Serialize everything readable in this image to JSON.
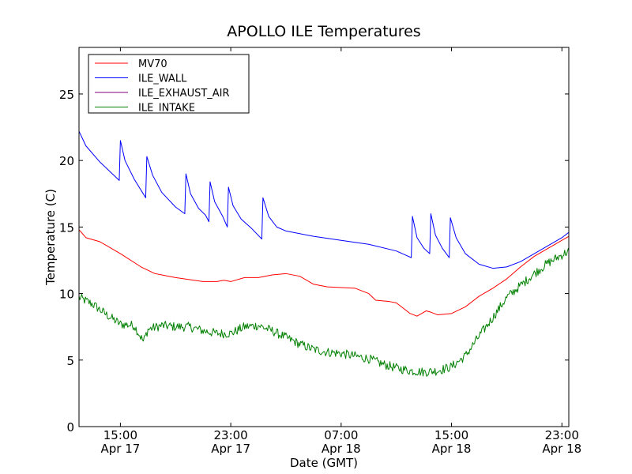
{
  "chart_data": {
    "type": "line",
    "title": "APOLLO ILE Temperatures",
    "xlabel": "Date (GMT)",
    "ylabel": "Temperature (C)",
    "xlim": [
      "2012-04-17 12:00",
      "2012-04-18 23:30"
    ],
    "ylim": [
      0,
      28.5
    ],
    "grid": false,
    "legend_location": "upper-left",
    "x_ticks": [
      {
        "x": "2012-04-17 15:00",
        "line1": "15:00",
        "line2": "Apr 17"
      },
      {
        "x": "2012-04-17 23:00",
        "line1": "23:00",
        "line2": "Apr 17"
      },
      {
        "x": "2012-04-18 07:00",
        "line1": "07:00",
        "line2": "Apr 18"
      },
      {
        "x": "2012-04-18 15:00",
        "line1": "15:00",
        "line2": "Apr 18"
      },
      {
        "x": "2012-04-18 23:00",
        "line1": "23:00",
        "line2": "Apr 18"
      }
    ],
    "y_ticks": [
      0,
      5,
      10,
      15,
      20,
      25
    ],
    "series": [
      {
        "name": "MV70",
        "color": "#ff0000",
        "points": [
          [
            "2012-04-17 12:00",
            14.8
          ],
          [
            "2012-04-17 12:30",
            14.2
          ],
          [
            "2012-04-17 13:30",
            13.9
          ],
          [
            "2012-04-17 15:00",
            13.0
          ],
          [
            "2012-04-17 16:30",
            12.0
          ],
          [
            "2012-04-17 17:30",
            11.5
          ],
          [
            "2012-04-17 18:00",
            11.4
          ],
          [
            "2012-04-17 19:00",
            11.2
          ],
          [
            "2012-04-17 21:00",
            10.9
          ],
          [
            "2012-04-17 22:00",
            10.9
          ],
          [
            "2012-04-17 22:30",
            11.0
          ],
          [
            "2012-04-17 23:00",
            10.9
          ],
          [
            "2012-04-18 00:00",
            11.2
          ],
          [
            "2012-04-18 01:00",
            11.2
          ],
          [
            "2012-04-18 02:00",
            11.4
          ],
          [
            "2012-04-18 03:00",
            11.5
          ],
          [
            "2012-04-18 04:00",
            11.3
          ],
          [
            "2012-04-18 05:00",
            10.7
          ],
          [
            "2012-04-18 06:00",
            10.5
          ],
          [
            "2012-04-18 08:00",
            10.4
          ],
          [
            "2012-04-18 09:00",
            10.0
          ],
          [
            "2012-04-18 09:30",
            9.5
          ],
          [
            "2012-04-18 10:30",
            9.4
          ],
          [
            "2012-04-18 11:00",
            9.3
          ],
          [
            "2012-04-18 12:00",
            8.5
          ],
          [
            "2012-04-18 12:30",
            8.3
          ],
          [
            "2012-04-18 13:10",
            8.7
          ],
          [
            "2012-04-18 13:30",
            8.6
          ],
          [
            "2012-04-18 14:00",
            8.4
          ],
          [
            "2012-04-18 15:00",
            8.5
          ],
          [
            "2012-04-18 16:00",
            9.0
          ],
          [
            "2012-04-18 17:00",
            9.8
          ],
          [
            "2012-04-18 18:00",
            10.4
          ],
          [
            "2012-04-18 19:00",
            11.1
          ],
          [
            "2012-04-18 20:00",
            12.0
          ],
          [
            "2012-04-18 21:00",
            12.8
          ],
          [
            "2012-04-18 22:00",
            13.4
          ],
          [
            "2012-04-18 23:30",
            14.3
          ]
        ]
      },
      {
        "name": "ILE_WALL",
        "color": "#0000ff",
        "points": [
          [
            "2012-04-17 12:00",
            22.2
          ],
          [
            "2012-04-17 12:30",
            21.1
          ],
          [
            "2012-04-17 13:30",
            19.9
          ],
          [
            "2012-04-17 14:55",
            18.5
          ],
          [
            "2012-04-17 15:00",
            21.5
          ],
          [
            "2012-04-17 15:20",
            20.0
          ],
          [
            "2012-04-17 16:00",
            18.6
          ],
          [
            "2012-04-17 16:50",
            17.2
          ],
          [
            "2012-04-17 16:55",
            20.3
          ],
          [
            "2012-04-17 17:20",
            18.9
          ],
          [
            "2012-04-17 18:00",
            17.6
          ],
          [
            "2012-04-17 19:00",
            16.5
          ],
          [
            "2012-04-17 19:40",
            16.0
          ],
          [
            "2012-04-17 19:45",
            19.0
          ],
          [
            "2012-04-17 20:05",
            17.5
          ],
          [
            "2012-04-17 20:40",
            16.4
          ],
          [
            "2012-04-17 21:10",
            15.9
          ],
          [
            "2012-04-17 21:25",
            15.4
          ],
          [
            "2012-04-17 21:30",
            18.4
          ],
          [
            "2012-04-17 21:50",
            16.9
          ],
          [
            "2012-04-17 22:25",
            15.8
          ],
          [
            "2012-04-17 22:45",
            15.0
          ],
          [
            "2012-04-17 22:50",
            18.0
          ],
          [
            "2012-04-17 23:10",
            16.6
          ],
          [
            "2012-04-17 23:45",
            15.6
          ],
          [
            "2012-04-18 00:30",
            14.9
          ],
          [
            "2012-04-18 01:15",
            14.1
          ],
          [
            "2012-04-18 01:20",
            17.2
          ],
          [
            "2012-04-18 01:45",
            15.8
          ],
          [
            "2012-04-18 02:20",
            15.0
          ],
          [
            "2012-04-18 03:00",
            14.7
          ],
          [
            "2012-04-18 05:00",
            14.3
          ],
          [
            "2012-04-18 07:00",
            14.0
          ],
          [
            "2012-04-18 09:00",
            13.7
          ],
          [
            "2012-04-18 11:00",
            13.2
          ],
          [
            "2012-04-18 12:05",
            12.7
          ],
          [
            "2012-04-18 12:10",
            15.8
          ],
          [
            "2012-04-18 12:30",
            14.2
          ],
          [
            "2012-04-18 13:00",
            13.4
          ],
          [
            "2012-04-18 13:25",
            13.0
          ],
          [
            "2012-04-18 13:30",
            16.0
          ],
          [
            "2012-04-18 13:50",
            14.4
          ],
          [
            "2012-04-18 14:20",
            13.4
          ],
          [
            "2012-04-18 14:50",
            12.7
          ],
          [
            "2012-04-18 14:55",
            15.7
          ],
          [
            "2012-04-18 15:20",
            14.2
          ],
          [
            "2012-04-18 16:00",
            13.0
          ],
          [
            "2012-04-18 17:00",
            12.2
          ],
          [
            "2012-04-18 18:00",
            11.9
          ],
          [
            "2012-04-18 19:00",
            12.0
          ],
          [
            "2012-04-18 20:00",
            12.4
          ],
          [
            "2012-04-18 21:00",
            13.0
          ],
          [
            "2012-04-18 22:00",
            13.6
          ],
          [
            "2012-04-18 23:00",
            14.2
          ],
          [
            "2012-04-18 23:30",
            14.6
          ]
        ]
      },
      {
        "name": "ILE_EXHAUST_AIR",
        "color": "#800080",
        "points": []
      },
      {
        "name": "ILE_INTAKE",
        "color": "#008000",
        "noise": 0.35,
        "points": [
          [
            "2012-04-17 12:00",
            9.7
          ],
          [
            "2012-04-17 13:00",
            9.2
          ],
          [
            "2012-04-17 14:00",
            8.4
          ],
          [
            "2012-04-17 15:00",
            7.7
          ],
          [
            "2012-04-17 16:00",
            7.6
          ],
          [
            "2012-04-17 16:40",
            6.4
          ],
          [
            "2012-04-17 17:00",
            7.3
          ],
          [
            "2012-04-17 18:00",
            7.6
          ],
          [
            "2012-04-17 19:00",
            7.5
          ],
          [
            "2012-04-17 20:00",
            7.5
          ],
          [
            "2012-04-17 21:00",
            7.2
          ],
          [
            "2012-04-17 22:00",
            7.0
          ],
          [
            "2012-04-17 23:00",
            7.0
          ],
          [
            "2012-04-18 00:00",
            7.5
          ],
          [
            "2012-04-18 01:00",
            7.6
          ],
          [
            "2012-04-18 02:00",
            7.2
          ],
          [
            "2012-04-18 03:00",
            6.7
          ],
          [
            "2012-04-18 04:00",
            6.2
          ],
          [
            "2012-04-18 05:00",
            5.8
          ],
          [
            "2012-04-18 06:00",
            5.6
          ],
          [
            "2012-04-18 07:00",
            5.5
          ],
          [
            "2012-04-18 08:00",
            5.3
          ],
          [
            "2012-04-18 09:00",
            5.1
          ],
          [
            "2012-04-18 10:00",
            4.7
          ],
          [
            "2012-04-18 11:00",
            4.4
          ],
          [
            "2012-04-18 12:00",
            4.2
          ],
          [
            "2012-04-18 13:00",
            4.1
          ],
          [
            "2012-04-18 14:00",
            4.2
          ],
          [
            "2012-04-18 15:00",
            4.5
          ],
          [
            "2012-04-18 16:00",
            5.3
          ],
          [
            "2012-04-18 17:00",
            6.8
          ],
          [
            "2012-04-18 18:00",
            8.2
          ],
          [
            "2012-04-18 19:00",
            9.7
          ],
          [
            "2012-04-18 20:00",
            10.6
          ],
          [
            "2012-04-18 21:00",
            11.5
          ],
          [
            "2012-04-18 22:00",
            12.3
          ],
          [
            "2012-04-18 23:30",
            13.2
          ]
        ]
      }
    ]
  }
}
